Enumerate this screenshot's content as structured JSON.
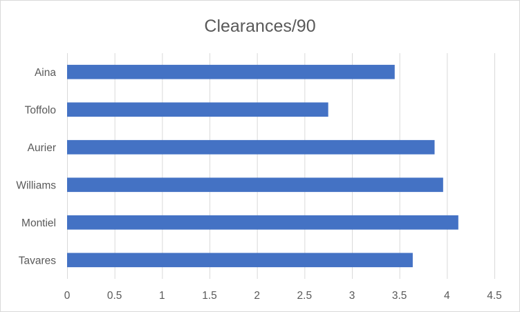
{
  "chart_data": {
    "type": "bar",
    "orientation": "horizontal",
    "title": "Clearances/90",
    "xlabel": "",
    "ylabel": "",
    "categories": [
      "Aina",
      "Toffolo",
      "Aurier",
      "Williams",
      "Montiel",
      "Tavares"
    ],
    "series": [
      {
        "values": [
          3.45,
          2.75,
          3.87,
          3.96,
          4.12,
          3.64
        ],
        "color": "#4472c4"
      }
    ],
    "xlim": [
      0,
      4.5
    ],
    "x_ticks": [
      "0",
      "0.5",
      "1",
      "1.5",
      "2",
      "2.5",
      "3",
      "3.5",
      "4",
      "4.5"
    ],
    "grid": "vertical",
    "legend": "none"
  }
}
